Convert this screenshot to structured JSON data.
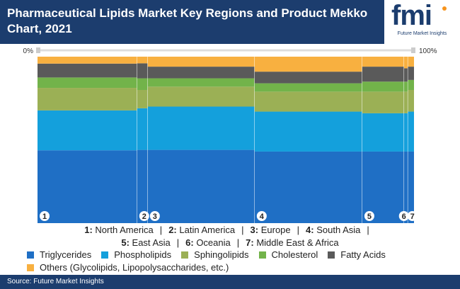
{
  "header": {
    "title": "Pharmaceutical Lipids Market Key Regions and Product Mekko Chart, 2021"
  },
  "logo": {
    "wordmark": "fmi",
    "tagline": "Future Market Insights"
  },
  "colors": {
    "header_bg": "#1c3d6e",
    "Triglycerides": "#1f6fc5",
    "Phospholipids": "#14a0dc",
    "Sphingolipids": "#9bb055",
    "Cholesterol": "#72b34a",
    "Fatty Acids": "#5a5a5a",
    "Others": "#f8b040"
  },
  "chart_data": {
    "type": "mekko",
    "axis": {
      "left_label": "0%",
      "right_label": "100%"
    },
    "categories": [
      {
        "id": "1",
        "name": "North America",
        "width_pct": 26.2
      },
      {
        "id": "2",
        "name": "Latin America",
        "width_pct": 2.8
      },
      {
        "id": "3",
        "name": "Europe",
        "width_pct": 28.1
      },
      {
        "id": "4",
        "name": "South Asia",
        "width_pct": 28.3
      },
      {
        "id": "5",
        "name": "East Asia",
        "width_pct": 11.0
      },
      {
        "id": "6",
        "name": "Oceania",
        "width_pct": 1.0
      },
      {
        "id": "7",
        "name": "Middle East & Africa",
        "width_pct": 1.6
      }
    ],
    "series": [
      {
        "name": "Triglycerides",
        "values": [
          42,
          44,
          44,
          43,
          43,
          43,
          43
        ]
      },
      {
        "name": "Phospholipids",
        "values": [
          23,
          25,
          26,
          24,
          23,
          23,
          24
        ]
      },
      {
        "name": "Sphingolipids",
        "values": [
          13,
          11,
          12,
          12,
          13,
          13,
          13
        ]
      },
      {
        "name": "Cholesterol",
        "values": [
          6,
          7,
          5,
          5,
          6,
          6,
          6
        ]
      },
      {
        "name": "Fatty Acids",
        "values": [
          8,
          9,
          7,
          7,
          9,
          8,
          8
        ]
      },
      {
        "name": "Others (Glycolipids, Lipopolysaccharides, etc.)",
        "values": [
          4,
          4,
          6,
          9,
          6,
          7,
          6
        ]
      }
    ]
  },
  "category_legend": [
    {
      "num": "1:",
      "name": "North America"
    },
    {
      "num": "2:",
      "name": "Latin America"
    },
    {
      "num": "3:",
      "name": "Europe"
    },
    {
      "num": "4:",
      "name": "South Asia"
    },
    {
      "num": "5:",
      "name": "East Asia"
    },
    {
      "num": "6:",
      "name": "Oceania"
    },
    {
      "num": "7:",
      "name": "Middle East & Africa"
    }
  ],
  "legend_sep": "|",
  "series_legend": [
    {
      "label": "Triglycerides",
      "color": "#1f6fc5"
    },
    {
      "label": "Phospholipids",
      "color": "#14a0dc"
    },
    {
      "label": "Sphingolipids",
      "color": "#9bb055"
    },
    {
      "label": "Cholesterol",
      "color": "#72b34a"
    },
    {
      "label": "Fatty Acids",
      "color": "#5a5a5a"
    },
    {
      "label": "Others (Glycolipids, Lipopolysaccharides, etc.)",
      "color": "#f8b040"
    }
  ],
  "footer": {
    "source": "Source: Future Market Insights"
  }
}
